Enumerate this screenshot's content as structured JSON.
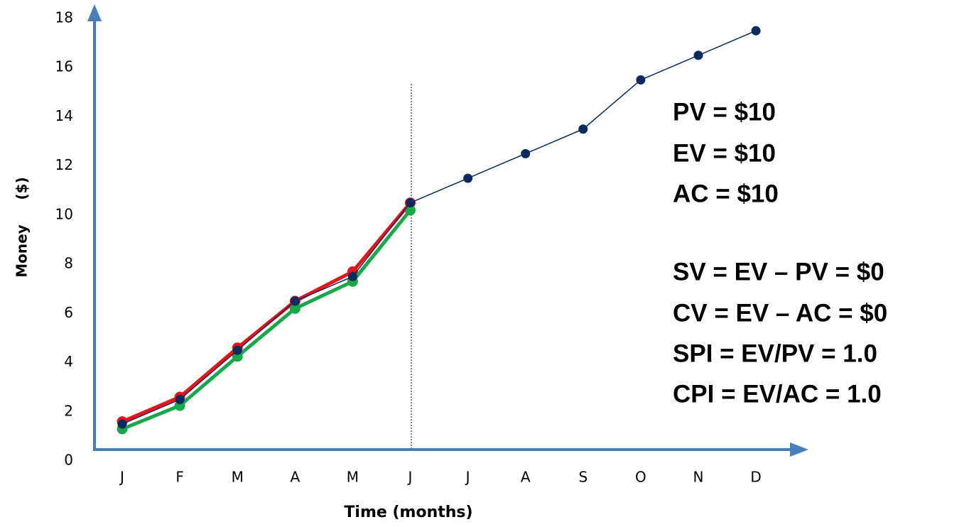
{
  "chart_data": {
    "type": "line",
    "x_label": "Time (months)",
    "y_label": "Money     ($)",
    "categories": [
      "J",
      "F",
      "M",
      "A",
      "M",
      "J",
      "J",
      "A",
      "S",
      "O",
      "N",
      "D"
    ],
    "series": [
      {
        "color": "#0b2a5e",
        "values": [
          1.5,
          2.5,
          4.5,
          6.5,
          7.5,
          10.5,
          11.5,
          12.5,
          13.5,
          15.5,
          16.5,
          17.5
        ]
      },
      {
        "color": "#e8141b",
        "values": [
          1.6,
          2.6,
          4.6,
          6.5,
          7.7,
          10.5,
          null,
          null,
          null,
          null,
          null,
          null
        ]
      },
      {
        "color": "#17a84a",
        "values": [
          1.3,
          2.25,
          4.25,
          6.2,
          7.3,
          10.2,
          null,
          null,
          null,
          null,
          null,
          null
        ]
      }
    ],
    "ylim": [
      0,
      18
    ],
    "yticks": [
      0,
      2,
      4,
      6,
      8,
      10,
      12,
      14,
      16,
      18
    ],
    "annotations": [
      "PV = $10",
      "EV = $10",
      "AC = $10",
      "SV = EV – PV = $0",
      "CV = EV – AC = $0",
      "SPI = EV/PV = 1.0",
      "CPI = EV/AC = 1.0"
    ]
  }
}
